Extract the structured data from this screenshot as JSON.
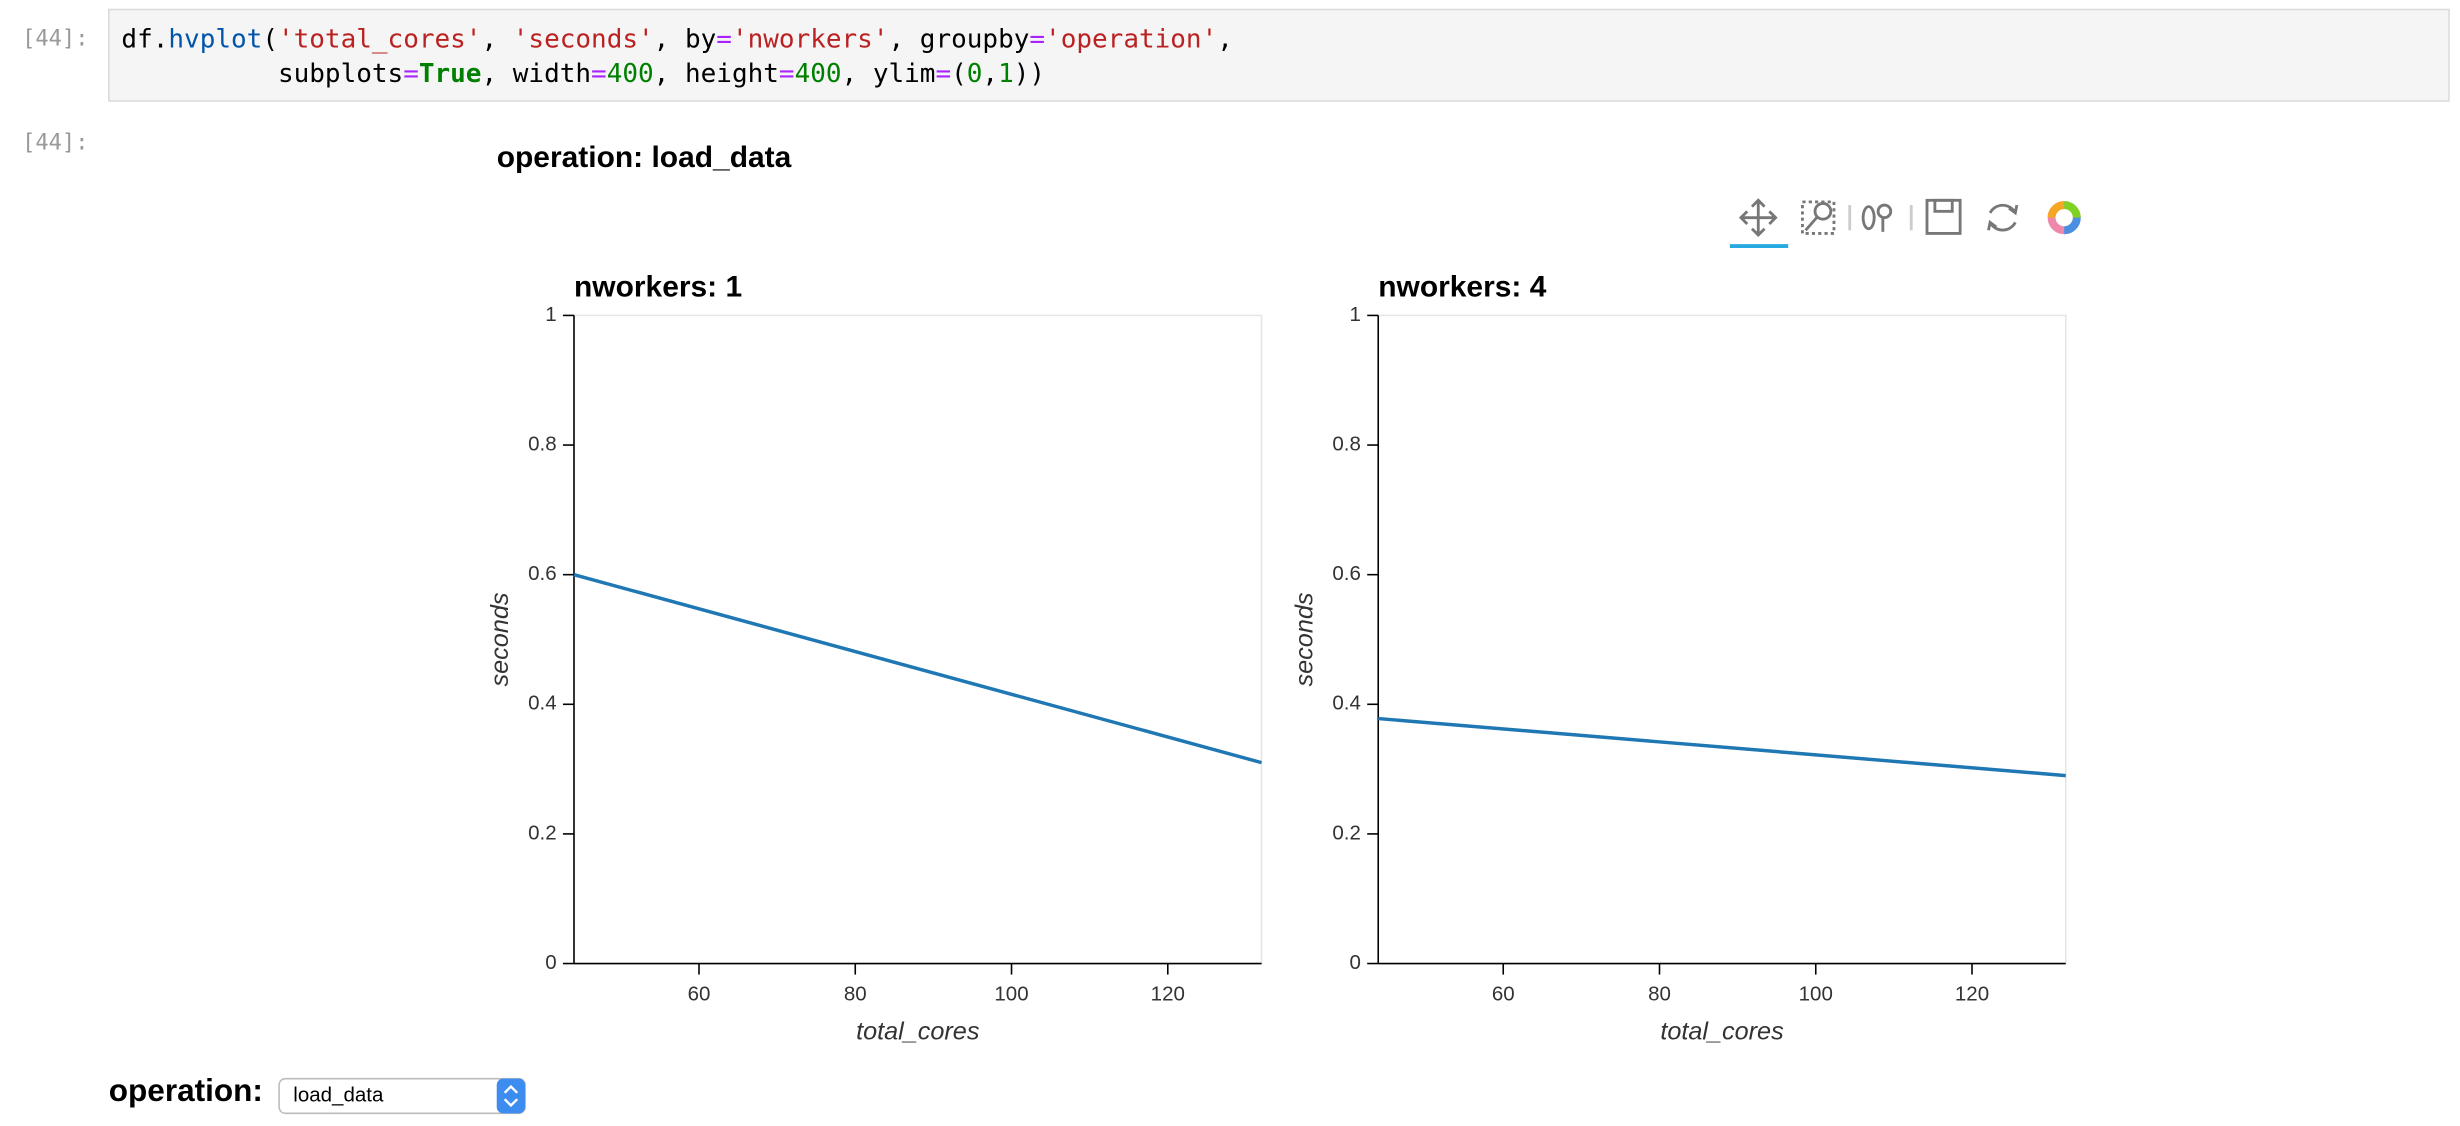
{
  "cell": {
    "prompt": "[44]:",
    "code": [
      [
        {
          "text": "df.",
          "color": "#000000"
        },
        {
          "text": "hvplot",
          "color": "#0055aa"
        },
        {
          "text": "(",
          "color": "#000000"
        },
        {
          "text": "'total_cores'",
          "color": "#ba2121"
        },
        {
          "text": ", ",
          "color": "#000000"
        },
        {
          "text": "'seconds'",
          "color": "#ba2121"
        },
        {
          "text": ", by",
          "color": "#000000"
        },
        {
          "text": "=",
          "color": "#aa22ff"
        },
        {
          "text": "'nworkers'",
          "color": "#ba2121"
        },
        {
          "text": ", groupby",
          "color": "#000000"
        },
        {
          "text": "=",
          "color": "#aa22ff"
        },
        {
          "text": "'operation'",
          "color": "#ba2121"
        },
        {
          "text": ",",
          "color": "#000000"
        }
      ],
      [
        {
          "text": "          subplots",
          "color": "#000000"
        },
        {
          "text": "=",
          "color": "#aa22ff"
        },
        {
          "text": "True",
          "color": "#008000"
        },
        {
          "text": ", width",
          "color": "#000000"
        },
        {
          "text": "=",
          "color": "#aa22ff"
        },
        {
          "text": "400",
          "color": "#008000"
        },
        {
          "text": ", height",
          "color": "#000000"
        },
        {
          "text": "=",
          "color": "#aa22ff"
        },
        {
          "text": "400",
          "color": "#008000"
        },
        {
          "text": ", ylim",
          "color": "#000000"
        },
        {
          "text": "=",
          "color": "#aa22ff"
        },
        {
          "text": "(",
          "color": "#000000"
        },
        {
          "text": "0",
          "color": "#008000"
        },
        {
          "text": ",",
          "color": "#000000"
        },
        {
          "text": "1",
          "color": "#008000"
        },
        {
          "text": "))",
          "color": "#000000"
        }
      ]
    ]
  },
  "output_prompt": "[44]:",
  "layout_title": "operation: load_data",
  "chart_data": [
    {
      "type": "line",
      "title": "nworkers: 1",
      "x_label": "total_cores",
      "y_label": "seconds",
      "x": [
        44,
        132
      ],
      "series": [
        {
          "color": "#1f77b4",
          "values": [
            0.6,
            0.31
          ]
        }
      ],
      "xlim": [
        44,
        132
      ],
      "ylim": [
        0,
        1
      ],
      "xticks": [
        60,
        80,
        100,
        120
      ],
      "yticks": [
        0,
        0.2,
        0.4,
        0.6,
        0.8,
        1
      ]
    },
    {
      "type": "line",
      "title": "nworkers: 4",
      "x_label": "total_cores",
      "y_label": "seconds",
      "x": [
        44,
        132
      ],
      "series": [
        {
          "color": "#1f77b4",
          "values": [
            0.378,
            0.29
          ]
        }
      ],
      "xlim": [
        44,
        132
      ],
      "ylim": [
        0,
        1
      ],
      "xticks": [
        60,
        80,
        100,
        120
      ],
      "yticks": [
        0,
        0.2,
        0.4,
        0.6,
        0.8,
        1
      ]
    }
  ],
  "widget": {
    "label": "operation:",
    "value": "load_data"
  }
}
